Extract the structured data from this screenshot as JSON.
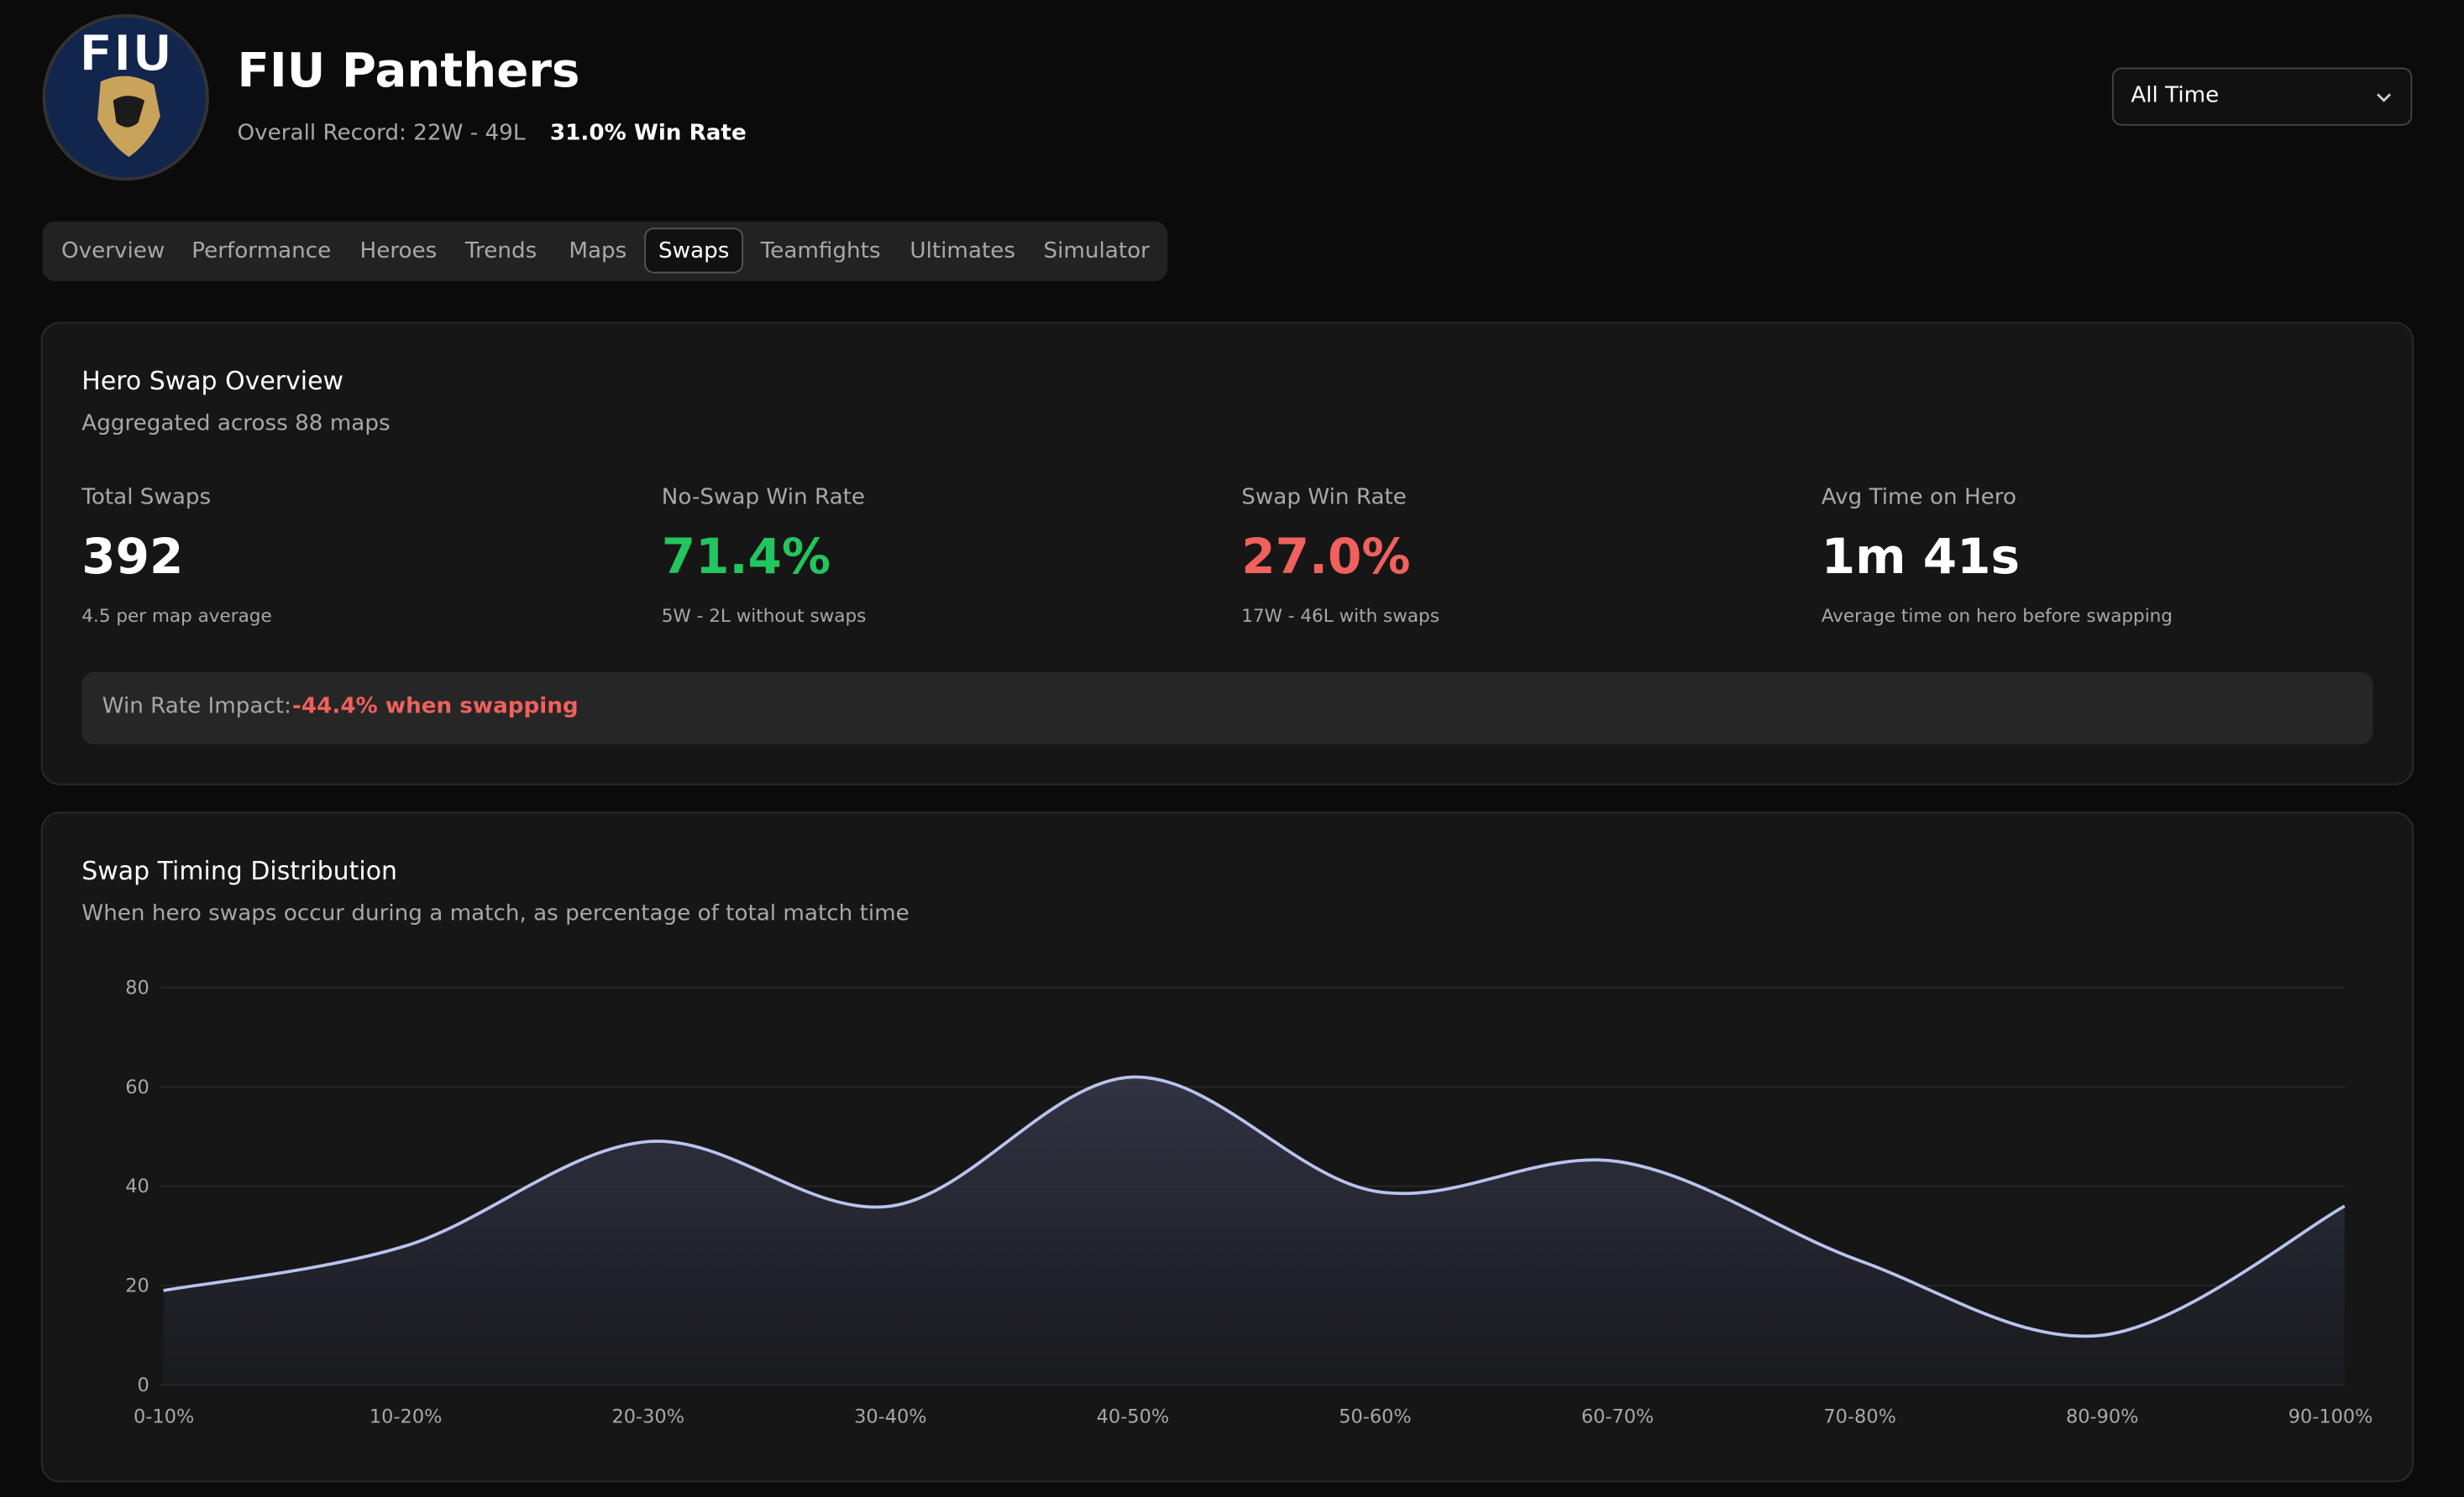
{
  "header": {
    "logo_text": "FIU",
    "title": "FIU Panthers",
    "record": "Overall Record: 22W - 49L",
    "win_rate": "31.0% Win Rate",
    "filter": "All Time"
  },
  "tabs": [
    "Overview",
    "Performance",
    "Heroes",
    "Trends",
    "Maps",
    "Swaps",
    "Teamfights",
    "Ultimates",
    "Simulator"
  ],
  "overview": {
    "title": "Hero Swap Overview",
    "subtitle": "Aggregated across 88 maps",
    "stats": [
      {
        "label": "Total Swaps",
        "value": "392",
        "note": "4.5 per map average",
        "color": "#ffffff"
      },
      {
        "label": "No-Swap Win Rate",
        "value": "71.4%",
        "note": "5W - 2L without swaps",
        "color": "#22c55e"
      },
      {
        "label": "Swap Win Rate",
        "value": "27.0%",
        "note": "17W - 46L with swaps",
        "color": "#f0605d"
      },
      {
        "label": "Avg Time on Hero",
        "value": "1m 41s",
        "note": "Average time on hero before swapping",
        "color": "#ffffff"
      }
    ],
    "impact_label": "Win Rate Impact:",
    "impact_value": "-44.4% when swapping"
  },
  "chart_data": {
    "type": "area",
    "title": "Swap Timing Distribution",
    "subtitle": "When hero swaps occur during a match, as percentage of total match time",
    "categories": [
      "0-10%",
      "10-20%",
      "20-30%",
      "30-40%",
      "40-50%",
      "50-60%",
      "60-70%",
      "70-80%",
      "80-90%",
      "90-100%"
    ],
    "values": [
      19,
      28,
      49,
      36,
      62,
      39,
      45,
      25,
      10,
      36
    ],
    "color": "#b9c3ee",
    "ylim": [
      0,
      80
    ],
    "yticks": [
      0,
      20,
      40,
      60,
      80
    ],
    "grid": true
  }
}
